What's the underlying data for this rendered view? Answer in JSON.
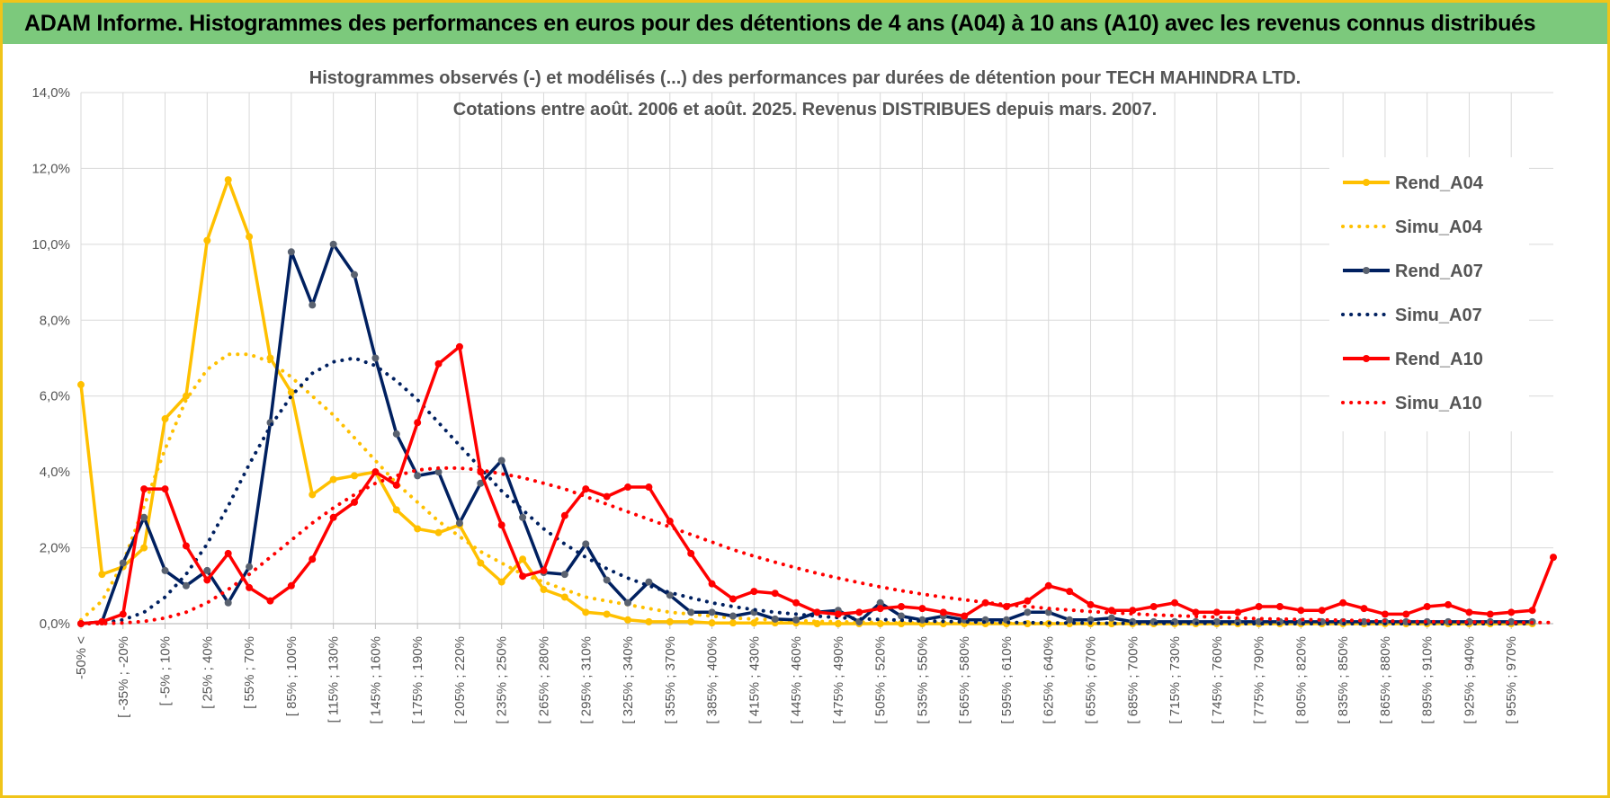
{
  "header": {
    "title": "ADAM Informe. Histogrammes des performances en euros pour des détentions de 4 ans (A04) à 10 ans (A10) avec les revenus connus distribués"
  },
  "chart_data": {
    "type": "line",
    "title": "Histogrammes observés (-) et modélisés (...) des performances par durées de détention pour TECH MAHINDRA LTD.",
    "subtitle": "Cotations entre août. 2006 et août. 2025. Revenus DISTRIBUES depuis mars. 2007.",
    "xlabel": "",
    "ylabel": "",
    "ylim": [
      0,
      14
    ],
    "yticks": [
      "0,0%",
      "2,0%",
      "4,0%",
      "6,0%",
      "8,0%",
      "10,0%",
      "12,0%",
      "14,0%"
    ],
    "x_tick_labels": [
      "-50% <",
      "[ -35% ; -20%",
      "[ -5% ; 10%",
      "[ 25% ; 40%",
      "[ 55% ; 70%",
      "[ 85% ; 100%",
      "[ 115% ; 130%",
      "[ 145% ; 160%",
      "[ 175% ; 190%",
      "[ 205% ; 220%",
      "[ 235% ; 250%",
      "[ 265% ; 280%",
      "[ 295% ; 310%",
      "[ 325% ; 340%",
      "[ 355% ; 370%",
      "[ 385% ; 400%",
      "[ 415% ; 430%",
      "[ 445% ; 460%",
      "[ 475% ; 490%",
      "[ 505% ; 520%",
      "[ 535% ; 550%",
      "[ 565% ; 580%",
      "[ 595% ; 610%",
      "[ 625% ; 640%",
      "[ 655% ; 670%",
      "[ 685% ; 700%",
      "[ 715% ; 730%",
      "[ 745% ; 760%",
      "[ 775% ; 790%",
      "[ 805% ; 820%",
      "[ 835% ; 850%",
      "[ 865% ; 880%",
      "[ 895% ; 910%",
      "[ 925% ; 940%",
      "[ 955% ; 970%"
    ],
    "x_label_every": 2,
    "grid": true,
    "legend_position": "right",
    "series": [
      {
        "name": "Rend_A04",
        "style": "solid",
        "color": "#ffc000",
        "values": [
          6.3,
          1.3,
          1.5,
          2.0,
          5.4,
          6.0,
          10.1,
          11.7,
          10.2,
          7.0,
          6.1,
          3.4,
          3.8,
          3.9,
          4.0,
          3.0,
          2.5,
          2.4,
          2.6,
          1.6,
          1.1,
          1.7,
          0.9,
          0.7,
          0.3,
          0.25,
          0.1,
          0.05,
          0.05,
          0.05,
          0.02,
          0.02,
          0.02,
          0.02,
          0.02,
          0.0,
          0.0,
          0.0,
          0.0,
          0.0,
          0.0,
          0.0,
          0.0,
          0.0,
          0.0,
          0.0,
          0.0,
          0.0,
          0.0,
          0.0,
          0.0,
          0.0,
          0.0,
          0.0,
          0.0,
          0.0,
          0.0,
          0.0,
          0.0,
          0.0,
          0.0,
          0.0,
          0.0,
          0.0,
          0.0,
          0.0,
          0.0,
          0.0,
          0.0,
          0.0
        ]
      },
      {
        "name": "Simu_A04",
        "style": "dotted",
        "color": "#ffc000",
        "values": [
          0.1,
          0.6,
          1.6,
          3.1,
          4.6,
          5.9,
          6.7,
          7.1,
          7.1,
          6.9,
          6.5,
          6.0,
          5.5,
          4.9,
          4.3,
          3.7,
          3.2,
          2.7,
          2.3,
          1.9,
          1.6,
          1.3,
          1.1,
          0.9,
          0.7,
          0.6,
          0.5,
          0.4,
          0.3,
          0.25,
          0.2,
          0.15,
          0.12,
          0.1,
          0.08,
          0.06,
          0.05,
          0.04,
          0.03,
          0.02,
          0.02,
          0.01,
          0.01,
          0.01,
          0.01,
          0.0,
          0.0,
          0.0,
          0.0,
          0.0,
          0.0,
          0.0,
          0.0,
          0.0,
          0.0,
          0.0,
          0.0,
          0.0,
          0.0,
          0.0,
          0.0,
          0.0,
          0.0,
          0.0,
          0.0,
          0.0,
          0.0,
          0.0,
          0.0,
          0.0
        ]
      },
      {
        "name": "Rend_A07",
        "style": "solid",
        "color": "#002060",
        "values": [
          0.0,
          0.05,
          1.6,
          2.8,
          1.4,
          1.0,
          1.4,
          0.55,
          1.5,
          5.3,
          9.8,
          8.4,
          10.0,
          9.2,
          7.0,
          5.0,
          3.9,
          4.0,
          2.65,
          3.7,
          4.3,
          2.8,
          1.35,
          1.3,
          2.1,
          1.15,
          0.55,
          1.1,
          0.75,
          0.3,
          0.3,
          0.2,
          0.3,
          0.12,
          0.1,
          0.3,
          0.35,
          0.05,
          0.55,
          0.2,
          0.1,
          0.2,
          0.1,
          0.1,
          0.1,
          0.3,
          0.3,
          0.1,
          0.1,
          0.15,
          0.05,
          0.05,
          0.05,
          0.05,
          0.05,
          0.05,
          0.05,
          0.05,
          0.05,
          0.05,
          0.05,
          0.05,
          0.05,
          0.05,
          0.05,
          0.05,
          0.05,
          0.05,
          0.05,
          0.05
        ]
      },
      {
        "name": "Simu_A07",
        "style": "dotted",
        "color": "#002060",
        "values": [
          0.0,
          0.02,
          0.1,
          0.3,
          0.7,
          1.3,
          2.1,
          3.1,
          4.2,
          5.2,
          6.0,
          6.6,
          6.9,
          7.0,
          6.8,
          6.4,
          5.9,
          5.3,
          4.7,
          4.1,
          3.5,
          3.0,
          2.5,
          2.1,
          1.75,
          1.45,
          1.2,
          1.0,
          0.82,
          0.68,
          0.55,
          0.45,
          0.37,
          0.3,
          0.25,
          0.2,
          0.16,
          0.13,
          0.11,
          0.09,
          0.07,
          0.06,
          0.05,
          0.04,
          0.03,
          0.03,
          0.02,
          0.02,
          0.02,
          0.01,
          0.01,
          0.01,
          0.01,
          0.01,
          0.01,
          0.0,
          0.0,
          0.0,
          0.0,
          0.0,
          0.0,
          0.0,
          0.0,
          0.0,
          0.0,
          0.0,
          0.0,
          0.0,
          0.0,
          0.0
        ]
      },
      {
        "name": "Rend_A10",
        "style": "solid",
        "color": "#ff0000",
        "values": [
          0.0,
          0.05,
          0.25,
          3.55,
          3.55,
          2.05,
          1.15,
          1.85,
          0.95,
          0.6,
          1.0,
          1.7,
          2.8,
          3.2,
          4.0,
          3.65,
          5.3,
          6.85,
          7.3,
          4.0,
          2.6,
          1.25,
          1.4,
          2.85,
          3.55,
          3.35,
          3.6,
          3.6,
          2.7,
          1.85,
          1.05,
          0.65,
          0.85,
          0.8,
          0.55,
          0.3,
          0.25,
          0.3,
          0.4,
          0.45,
          0.4,
          0.3,
          0.2,
          0.55,
          0.45,
          0.6,
          1.0,
          0.85,
          0.5,
          0.35,
          0.35,
          0.45,
          0.55,
          0.3,
          0.3,
          0.3,
          0.45,
          0.45,
          0.35,
          0.35,
          0.55,
          0.4,
          0.25,
          0.25,
          0.45,
          0.5,
          0.3,
          0.25,
          0.3,
          0.35,
          1.75
        ]
      },
      {
        "name": "Simu_A10",
        "style": "dotted",
        "color": "#ff0000",
        "values": [
          0.0,
          0.0,
          0.02,
          0.06,
          0.15,
          0.3,
          0.55,
          0.9,
          1.3,
          1.75,
          2.2,
          2.65,
          3.05,
          3.4,
          3.7,
          3.9,
          4.05,
          4.1,
          4.1,
          4.05,
          3.95,
          3.85,
          3.7,
          3.55,
          3.35,
          3.15,
          2.95,
          2.75,
          2.55,
          2.35,
          2.15,
          1.95,
          1.78,
          1.62,
          1.47,
          1.33,
          1.2,
          1.08,
          0.97,
          0.87,
          0.78,
          0.7,
          0.63,
          0.56,
          0.5,
          0.45,
          0.4,
          0.36,
          0.32,
          0.29,
          0.26,
          0.23,
          0.21,
          0.19,
          0.17,
          0.15,
          0.13,
          0.12,
          0.11,
          0.1,
          0.09,
          0.08,
          0.07,
          0.06,
          0.05,
          0.05,
          0.04,
          0.04,
          0.03,
          0.03,
          0.03
        ]
      }
    ]
  }
}
